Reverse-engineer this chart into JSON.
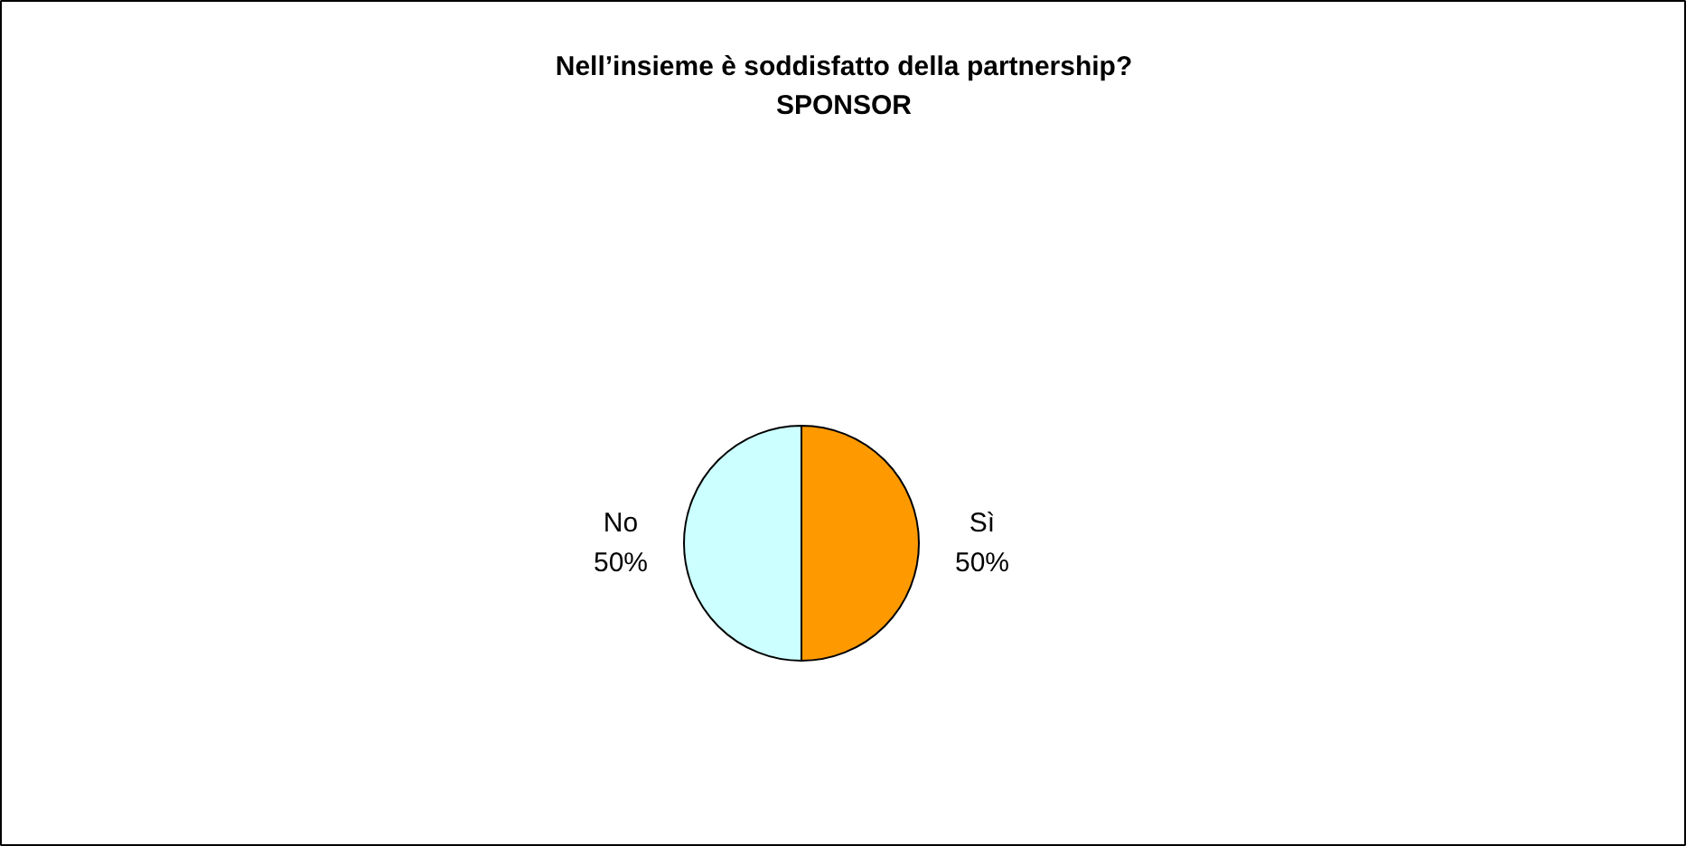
{
  "chart_data": {
    "type": "pie",
    "title": "Nell’insieme è soddisfatto della partnership?\nSPONSOR",
    "categories": [
      "Sì",
      "No"
    ],
    "values": [
      50,
      50
    ],
    "colors": [
      "#ff9900",
      "#ccffff"
    ],
    "value_labels": [
      "50%",
      "50%"
    ]
  }
}
